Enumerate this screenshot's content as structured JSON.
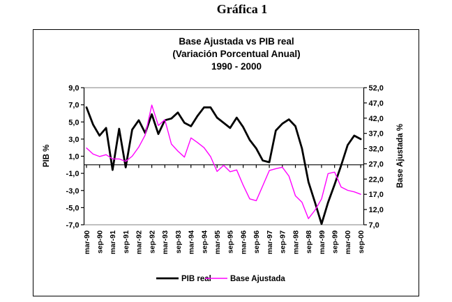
{
  "figure_title": "Gráfica 1",
  "chart_data": {
    "type": "line",
    "title_lines": [
      "Base Ajustada vs PIB real",
      "(Variación Porcentual Anual)",
      "1990 - 2000"
    ],
    "x_frequency": "quarterly, labels shown every 2nd quarter",
    "x_tick_labels": [
      "mar-90",
      "sep-90",
      "mar-91",
      "sep-91",
      "mar-92",
      "sep-92",
      "mar-93",
      "sep-93",
      "mar-94",
      "sep-94",
      "mar-95",
      "sep-95",
      "mar-96",
      "sep-96",
      "mar-97",
      "sep-97",
      "mar-98",
      "sep-98",
      "mar-99",
      "sep-99",
      "mar-00",
      "sep-00"
    ],
    "left_axis": {
      "title": "PIB %",
      "min": -7,
      "max": 9,
      "tick_step": 2,
      "tick_labels": [
        "9,0",
        "7,0",
        "5,0",
        "3,0",
        "1,0",
        "-1,0",
        "-3,0",
        "-5,0",
        "-7,0"
      ]
    },
    "right_axis": {
      "title": "Base Ajustada %",
      "min": 7,
      "max": 52,
      "tick_step": 5,
      "tick_labels": [
        "52,0",
        "47,0",
        "42,0",
        "37,0",
        "32,0",
        "27,0",
        "22,0",
        "17,0",
        "12,0",
        "7,0"
      ]
    },
    "grid": "off",
    "legend_position": "bottom-center",
    "series": [
      {
        "name": "PIB real",
        "axis": "left",
        "color": "#000000",
        "stroke_width": 2.8,
        "values": [
          6.7,
          4.7,
          3.4,
          4.3,
          -0.6,
          4.2,
          -0.3,
          4.1,
          5.2,
          3.7,
          5.9,
          3.6,
          5.2,
          5.4,
          6.1,
          4.9,
          4.5,
          5.7,
          6.7,
          6.7,
          5.5,
          4.9,
          4.3,
          5.5,
          4.4,
          2.9,
          1.9,
          0.5,
          0.3,
          4.0,
          4.8,
          5.3,
          4.5,
          1.9,
          -2.0,
          -4.4,
          -6.9,
          -4.4,
          -2.3,
          -0.1,
          2.3,
          3.4,
          3.0
        ]
      },
      {
        "name": "Base Ajustada",
        "axis": "right",
        "color": "#ff00ff",
        "stroke_width": 1.4,
        "values": [
          32.2,
          30.2,
          29.4,
          30.0,
          28.6,
          28.6,
          27.8,
          29.5,
          32.5,
          36.5,
          46.3,
          39.6,
          41.5,
          33.5,
          31.2,
          29.2,
          35.5,
          34.0,
          32.3,
          29.4,
          24.5,
          26.5,
          24.4,
          25.0,
          20.0,
          15.5,
          14.9,
          19.8,
          24.8,
          25.4,
          25.9,
          23.0,
          16.5,
          14.4,
          9.0,
          11.8,
          15.5,
          23.8,
          24.3,
          19.4,
          18.3,
          17.8,
          17.0
        ]
      }
    ],
    "colors": {
      "axis_line": "#000000",
      "plot_border": "#808080",
      "pib_line": "#000000",
      "base_line": "#ff00ff"
    }
  }
}
